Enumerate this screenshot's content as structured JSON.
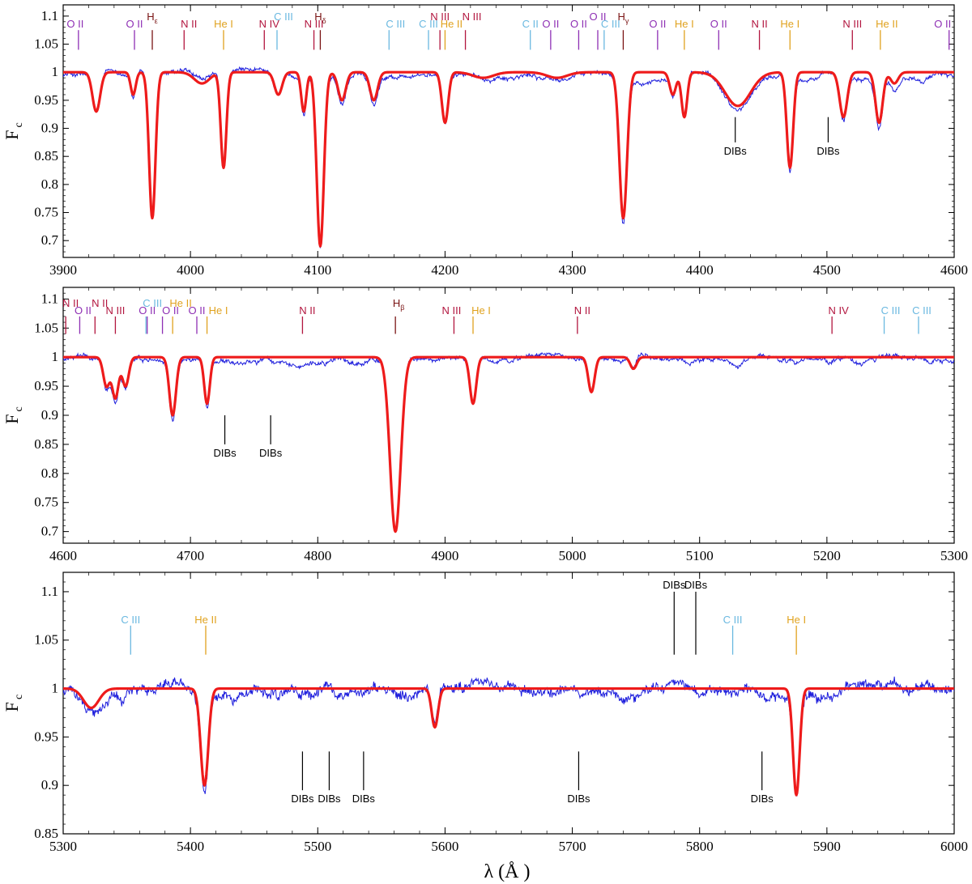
{
  "colors": {
    "observed": "#1f1fdd",
    "model": "#ee1b1b",
    "ion": {
      "O": "#8e2fb4",
      "N": "#b2163f",
      "C": "#6ab8e0",
      "He": "#e0a21e",
      "H": "#7a1414",
      "DIB": "#000000"
    }
  },
  "chart_data": [
    {
      "type": "line",
      "xlabel": "",
      "ylabel": "F_c",
      "xlim": [
        3900,
        4600
      ],
      "ylim": [
        0.67,
        1.12
      ],
      "x_ticks": [
        3900,
        4000,
        4100,
        4200,
        4300,
        4400,
        4500,
        4600
      ],
      "y_ticks": [
        0.7,
        0.75,
        0.8,
        0.85,
        0.9,
        0.95,
        1,
        1.05,
        1.1
      ],
      "x_tick_labels": [
        "3900",
        "4000",
        "4100",
        "4200",
        "4300",
        "4400",
        "4500",
        "4600"
      ],
      "y_tick_labels": [
        "0.7",
        "0.75",
        "0.8",
        "0.85",
        "0.9",
        "0.95",
        "1",
        "1.05",
        "1.1"
      ],
      "lines": [
        {
          "x": 3926,
          "depth": 0.07,
          "width": 3
        },
        {
          "x": 3955,
          "depth": 0.04,
          "width": 2
        },
        {
          "x": 3970,
          "depth": 0.26,
          "width": 2.5
        },
        {
          "x": 4009,
          "depth": 0.02,
          "width": 6
        },
        {
          "x": 4026,
          "depth": 0.17,
          "width": 2.2
        },
        {
          "x": 4069,
          "depth": 0.04,
          "width": 3
        },
        {
          "x": 4089,
          "depth": 0.07,
          "width": 2
        },
        {
          "x": 4102,
          "depth": 0.31,
          "width": 2.8
        },
        {
          "x": 4119,
          "depth": 0.05,
          "width": 3
        },
        {
          "x": 4144,
          "depth": 0.05,
          "width": 3
        },
        {
          "x": 4200,
          "depth": 0.09,
          "width": 2.5
        },
        {
          "x": 4230,
          "depth": 0.01,
          "width": 8
        },
        {
          "x": 4288,
          "depth": 0.01,
          "width": 8
        },
        {
          "x": 4340,
          "depth": 0.26,
          "width": 3
        },
        {
          "x": 4379,
          "depth": 0.04,
          "width": 2.5
        },
        {
          "x": 4388,
          "depth": 0.08,
          "width": 2.2
        },
        {
          "x": 4430,
          "depth": 0.06,
          "width": 10
        },
        {
          "x": 4471,
          "depth": 0.17,
          "width": 2.5
        },
        {
          "x": 4513,
          "depth": 0.08,
          "width": 3
        },
        {
          "x": 4541,
          "depth": 0.09,
          "width": 2.8
        },
        {
          "x": 4553,
          "depth": 0.02,
          "width": 3
        }
      ],
      "annotations": [
        {
          "label": "O II",
          "x": 3912,
          "tick_top": 1.075,
          "tick_bottom": 1.04,
          "level": "low",
          "color_key": "O",
          "offset": -4
        },
        {
          "label": "O II",
          "x": 3956,
          "tick_top": 1.075,
          "tick_bottom": 1.04,
          "level": "low",
          "color_key": "O",
          "offset": 0
        },
        {
          "label": "H",
          "sub": "ε",
          "x": 3970,
          "tick_top": 1.075,
          "tick_bottom": 1.04,
          "level": "high",
          "color_key": "H",
          "offset": 0
        },
        {
          "label": "N II",
          "x": 3995,
          "tick_top": 1.075,
          "tick_bottom": 1.04,
          "level": "low",
          "color_key": "N",
          "offset": 6
        },
        {
          "label": "He I",
          "x": 4026,
          "tick_top": 1.075,
          "tick_bottom": 1.04,
          "level": "low",
          "color_key": "He",
          "offset": 0
        },
        {
          "label": "N IV",
          "x": 4058,
          "tick_top": 1.075,
          "tick_bottom": 1.04,
          "level": "low",
          "color_key": "N",
          "offset": 6
        },
        {
          "label": "C III",
          "x": 4068,
          "tick_top": 1.075,
          "tick_bottom": 1.04,
          "level": "high",
          "color_key": "C",
          "offset": 8
        },
        {
          "label": "N III",
          "x": 4097,
          "tick_top": 1.075,
          "tick_bottom": 1.04,
          "level": "low",
          "color_key": "N",
          "offset": 0
        },
        {
          "label": "H",
          "sub": "δ",
          "x": 4102,
          "tick_top": 1.075,
          "tick_bottom": 1.04,
          "level": "high",
          "color_key": "H",
          "offset": 0
        },
        {
          "label": "C III",
          "x": 4156,
          "tick_top": 1.075,
          "tick_bottom": 1.04,
          "level": "low",
          "color_key": "C",
          "offset": 8
        },
        {
          "label": "C III",
          "x": 4187,
          "tick_top": 1.075,
          "tick_bottom": 1.04,
          "level": "low",
          "color_key": "C",
          "offset": 0
        },
        {
          "label": "N III",
          "x": 4196,
          "tick_top": 1.075,
          "tick_bottom": 1.04,
          "level": "high",
          "color_key": "N",
          "offset": 0
        },
        {
          "label": "He II",
          "x": 4200,
          "tick_top": 1.075,
          "tick_bottom": 1.04,
          "level": "low",
          "color_key": "He",
          "offset": 8
        },
        {
          "label": "N III",
          "x": 4216,
          "tick_top": 1.075,
          "tick_bottom": 1.04,
          "level": "high",
          "color_key": "N",
          "offset": 8
        },
        {
          "label": "C II",
          "x": 4267,
          "tick_top": 1.075,
          "tick_bottom": 1.04,
          "level": "low",
          "color_key": "C",
          "offset": 0
        },
        {
          "label": "O II",
          "x": 4283,
          "tick_top": 1.075,
          "tick_bottom": 1.04,
          "level": "low",
          "color_key": "O",
          "offset": 0
        },
        {
          "label": "O II",
          "x": 4305,
          "tick_top": 1.075,
          "tick_bottom": 1.04,
          "level": "low",
          "color_key": "O",
          "offset": 0
        },
        {
          "label": "O II",
          "x": 4320,
          "tick_top": 1.075,
          "tick_bottom": 1.04,
          "level": "high",
          "color_key": "O",
          "offset": 0
        },
        {
          "label": "C III",
          "x": 4325,
          "tick_top": 1.075,
          "tick_bottom": 1.04,
          "level": "low",
          "color_key": "C",
          "offset": 8
        },
        {
          "label": "H",
          "sub": "γ",
          "x": 4340,
          "tick_top": 1.075,
          "tick_bottom": 1.04,
          "level": "high",
          "color_key": "H",
          "offset": 0
        },
        {
          "label": "O II",
          "x": 4367,
          "tick_top": 1.075,
          "tick_bottom": 1.04,
          "level": "low",
          "color_key": "O",
          "offset": 0
        },
        {
          "label": "He I",
          "x": 4388,
          "tick_top": 1.075,
          "tick_bottom": 1.04,
          "level": "low",
          "color_key": "He",
          "offset": 0
        },
        {
          "label": "O II",
          "x": 4415,
          "tick_top": 1.075,
          "tick_bottom": 1.04,
          "level": "low",
          "color_key": "O",
          "offset": 0
        },
        {
          "label": "N II",
          "x": 4447,
          "tick_top": 1.075,
          "tick_bottom": 1.04,
          "level": "low",
          "color_key": "N",
          "offset": 0
        },
        {
          "label": "He I",
          "x": 4471,
          "tick_top": 1.075,
          "tick_bottom": 1.04,
          "level": "low",
          "color_key": "He",
          "offset": 0
        },
        {
          "label": "N III",
          "x": 4520,
          "tick_top": 1.075,
          "tick_bottom": 1.04,
          "level": "low",
          "color_key": "N",
          "offset": 0
        },
        {
          "label": "He II",
          "x": 4542,
          "tick_top": 1.075,
          "tick_bottom": 1.04,
          "level": "low",
          "color_key": "He",
          "offset": 8
        },
        {
          "label": "O II",
          "x": 4596,
          "tick_top": 1.075,
          "tick_bottom": 1.04,
          "level": "low",
          "color_key": "O",
          "offset": -8
        }
      ],
      "dibs": [
        {
          "label": "DIBs",
          "x": 4428,
          "y_top": 0.92,
          "y_bottom": 0.875
        },
        {
          "label": "DIBs",
          "x": 4501,
          "y_top": 0.92,
          "y_bottom": 0.875
        }
      ]
    },
    {
      "type": "line",
      "xlabel": "",
      "ylabel": "F_c",
      "xlim": [
        4600,
        5300
      ],
      "ylim": [
        0.68,
        1.12
      ],
      "x_ticks": [
        4600,
        4700,
        4800,
        4900,
        5000,
        5100,
        5200,
        5300
      ],
      "y_ticks": [
        0.7,
        0.75,
        0.8,
        0.85,
        0.9,
        0.95,
        1,
        1.05,
        1.1
      ],
      "x_tick_labels": [
        "4600",
        "4700",
        "4800",
        "4900",
        "5000",
        "5100",
        "5200",
        "5300"
      ],
      "y_tick_labels": [
        "0.7",
        "0.75",
        "0.8",
        "0.85",
        "0.9",
        "0.95",
        "1",
        "1.05",
        "1.1"
      ],
      "lines": [
        {
          "x": 4634,
          "depth": 0.05,
          "width": 2.5
        },
        {
          "x": 4641,
          "depth": 0.07,
          "width": 2.5
        },
        {
          "x": 4649,
          "depth": 0.05,
          "width": 2.5
        },
        {
          "x": 4686,
          "depth": 0.1,
          "width": 2.6
        },
        {
          "x": 4713,
          "depth": 0.08,
          "width": 2.2
        },
        {
          "x": 4861,
          "depth": 0.3,
          "width": 4.2
        },
        {
          "x": 4922,
          "depth": 0.08,
          "width": 2.5
        },
        {
          "x": 5015,
          "depth": 0.06,
          "width": 2.5
        },
        {
          "x": 5048,
          "depth": 0.02,
          "width": 2.5
        }
      ],
      "annotations": [
        {
          "label": "N II",
          "x": 4602,
          "tick_top": 1.07,
          "tick_bottom": 1.04,
          "level": "high",
          "color_key": "N",
          "offset": 6
        },
        {
          "label": "O II",
          "x": 4613,
          "tick_top": 1.07,
          "tick_bottom": 1.04,
          "level": "low",
          "color_key": "O",
          "offset": 4
        },
        {
          "label": "N II",
          "x": 4625,
          "tick_top": 1.07,
          "tick_bottom": 1.04,
          "level": "high",
          "color_key": "N",
          "offset": 6
        },
        {
          "label": "N III",
          "x": 4641,
          "tick_top": 1.07,
          "tick_bottom": 1.04,
          "level": "low",
          "color_key": "N",
          "offset": 0
        },
        {
          "label": "O II",
          "x": 4666,
          "tick_top": 1.07,
          "tick_bottom": 1.04,
          "level": "low",
          "color_key": "O",
          "offset": 0
        },
        {
          "label": "C III",
          "x": 4665,
          "tick_top": 1.07,
          "tick_bottom": 1.04,
          "level": "high",
          "color_key": "C",
          "offset": 8
        },
        {
          "label": "O II",
          "x": 4678,
          "tick_top": 1.07,
          "tick_bottom": 1.04,
          "level": "low",
          "color_key": "O",
          "offset": 10
        },
        {
          "label": "He II",
          "x": 4686,
          "tick_top": 1.07,
          "tick_bottom": 1.04,
          "level": "high",
          "color_key": "He",
          "offset": 10
        },
        {
          "label": "O II",
          "x": 4705,
          "tick_top": 1.07,
          "tick_bottom": 1.04,
          "level": "low",
          "color_key": "O",
          "offset": 0
        },
        {
          "label": "He I",
          "x": 4713,
          "tick_top": 1.07,
          "tick_bottom": 1.04,
          "level": "low",
          "color_key": "He",
          "offset": 14
        },
        {
          "label": "N II",
          "x": 4788,
          "tick_top": 1.07,
          "tick_bottom": 1.04,
          "level": "low",
          "color_key": "N",
          "offset": 6
        },
        {
          "label": "H",
          "sub": "β",
          "x": 4861,
          "tick_top": 1.07,
          "tick_bottom": 1.04,
          "level": "high",
          "color_key": "H",
          "offset": 4
        },
        {
          "label": "N III",
          "x": 4907,
          "tick_top": 1.07,
          "tick_bottom": 1.04,
          "level": "low",
          "color_key": "N",
          "offset": -3
        },
        {
          "label": "He I",
          "x": 4922,
          "tick_top": 1.07,
          "tick_bottom": 1.04,
          "level": "low",
          "color_key": "He",
          "offset": 10
        },
        {
          "label": "N II",
          "x": 5004,
          "tick_top": 1.07,
          "tick_bottom": 1.04,
          "level": "low",
          "color_key": "N",
          "offset": 6
        },
        {
          "label": "N IV",
          "x": 5204,
          "tick_top": 1.07,
          "tick_bottom": 1.04,
          "level": "low",
          "color_key": "N",
          "offset": 8
        },
        {
          "label": "C III",
          "x": 5245,
          "tick_top": 1.07,
          "tick_bottom": 1.04,
          "level": "low",
          "color_key": "C",
          "offset": 8
        },
        {
          "label": "C III",
          "x": 5272,
          "tick_top": 1.07,
          "tick_bottom": 1.04,
          "level": "low",
          "color_key": "C",
          "offset": 4
        }
      ],
      "dibs": [
        {
          "label": "DIBs",
          "x": 4727,
          "y_top": 0.9,
          "y_bottom": 0.85
        },
        {
          "label": "DIBs",
          "x": 4763,
          "y_top": 0.9,
          "y_bottom": 0.85
        }
      ]
    },
    {
      "type": "line",
      "xlabel": "λ (Å )",
      "ylabel": "F_c",
      "xlim": [
        5300,
        6000
      ],
      "ylim": [
        0.85,
        1.12
      ],
      "x_ticks": [
        5300,
        5400,
        5500,
        5600,
        5700,
        5800,
        5900,
        6000
      ],
      "y_ticks": [
        0.85,
        0.9,
        0.95,
        1,
        1.05,
        1.1
      ],
      "x_tick_labels": [
        "5300",
        "5400",
        "5500",
        "5600",
        "5700",
        "5800",
        "5900",
        "6000"
      ],
      "y_tick_labels": [
        "0.85",
        "0.9",
        "0.95",
        "1",
        "1.05",
        "1.1"
      ],
      "lines": [
        {
          "x": 5322,
          "depth": 0.02,
          "width": 6
        },
        {
          "x": 5411,
          "depth": 0.1,
          "width": 3
        },
        {
          "x": 5592,
          "depth": 0.04,
          "width": 2.5
        },
        {
          "x": 5876,
          "depth": 0.11,
          "width": 2.6
        }
      ],
      "annotations": [
        {
          "label": "C III",
          "x": 5353,
          "tick_top": 1.065,
          "tick_bottom": 1.035,
          "level": "low",
          "color_key": "C",
          "offset": 0
        },
        {
          "label": "He II",
          "x": 5412,
          "tick_top": 1.065,
          "tick_bottom": 1.035,
          "level": "low",
          "color_key": "He",
          "offset": 0
        },
        {
          "label": "C III",
          "x": 5826,
          "tick_top": 1.065,
          "tick_bottom": 1.035,
          "level": "low",
          "color_key": "C",
          "offset": 0
        },
        {
          "label": "He I",
          "x": 5876,
          "tick_top": 1.065,
          "tick_bottom": 1.035,
          "level": "low",
          "color_key": "He",
          "offset": 0
        }
      ],
      "dibs": [
        {
          "label": "DIBs",
          "x": 5488,
          "y_top": 0.935,
          "y_bottom": 0.895
        },
        {
          "label": "DIBs",
          "x": 5509,
          "y_top": 0.935,
          "y_bottom": 0.895
        },
        {
          "label": "DIBs",
          "x": 5536,
          "y_top": 0.935,
          "y_bottom": 0.895
        },
        {
          "label": "DIBs",
          "x": 5705,
          "y_top": 0.935,
          "y_bottom": 0.895
        },
        {
          "label": "DIBs",
          "x": 5849,
          "y_top": 0.935,
          "y_bottom": 0.895
        },
        {
          "label": "DIBs",
          "x": 5780,
          "y_top": 1.1,
          "y_bottom": 1.035,
          "above": true
        },
        {
          "label": "DIBs",
          "x": 5797,
          "y_top": 1.1,
          "y_bottom": 1.035,
          "above": true
        }
      ]
    }
  ]
}
